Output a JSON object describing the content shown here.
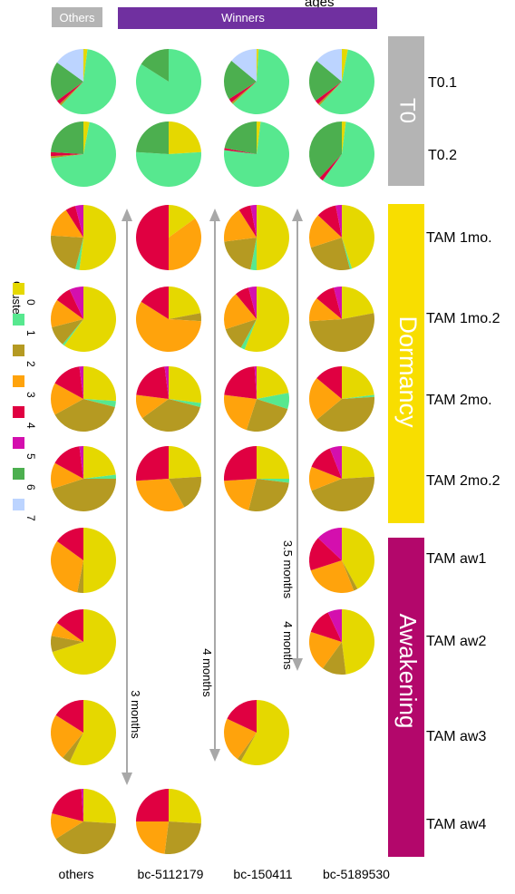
{
  "chart_data": {
    "type": "pie",
    "title_partial": "ages",
    "header": {
      "others": {
        "label": "Others",
        "color": "#b4b4b4"
      },
      "winners": {
        "label": "Winners",
        "color": "#7030a0"
      }
    },
    "legend": {
      "title": "Clusters",
      "placement": "left",
      "items": [
        {
          "label": "0",
          "color": "#e5d800"
        },
        {
          "label": "1",
          "color": "#57e88f"
        },
        {
          "label": "2",
          "color": "#b59a22"
        },
        {
          "label": "3",
          "color": "#ffa30c"
        },
        {
          "label": "4",
          "color": "#e00041"
        },
        {
          "label": "5",
          "color": "#d40fae"
        },
        {
          "label": "6",
          "color": "#4caf4f"
        },
        {
          "label": "7",
          "color": "#bcd4ff"
        }
      ]
    },
    "columns": [
      "others",
      "bc-5112179",
      "bc-150411",
      "bc-5189530"
    ],
    "rows": [
      "T0.1",
      "T0.2",
      "TAM 1mo.",
      "TAM 1mo.2",
      "TAM 2mo.",
      "TAM 2mo.2",
      "TAM aw1",
      "TAM aw2",
      "TAM aw3",
      "TAM aw4"
    ],
    "phases": [
      {
        "label": "T0",
        "color": "#b4b4b4"
      },
      {
        "label": "Dormancy",
        "color": "#f8de00"
      },
      {
        "label": "Awakening",
        "color": "#b3076b"
      }
    ],
    "durations": [
      {
        "label": "3 months"
      },
      {
        "label": "4 months"
      },
      {
        "label": "3.5 months"
      },
      {
        "label": "4 months"
      }
    ],
    "pies": [
      {
        "row": "T0.1",
        "col": "others",
        "values": [
          2,
          60,
          1,
          0,
          2,
          0,
          20,
          15
        ]
      },
      {
        "row": "T0.1",
        "col": "bc-5112179",
        "values": [
          0,
          84,
          0,
          0,
          0,
          0,
          16,
          0
        ]
      },
      {
        "row": "T0.1",
        "col": "bc-150411",
        "values": [
          1,
          62,
          1,
          0,
          2,
          0,
          20,
          14
        ]
      },
      {
        "row": "T0.1",
        "col": "bc-5189530",
        "values": [
          3,
          59,
          1,
          0,
          2,
          0,
          21,
          14
        ]
      },
      {
        "row": "T0.2",
        "col": "others",
        "values": [
          3,
          70,
          1,
          0,
          2,
          0,
          24,
          0
        ]
      },
      {
        "row": "T0.2",
        "col": "bc-5112179",
        "values": [
          24,
          52,
          0,
          0,
          0,
          0,
          24,
          0
        ]
      },
      {
        "row": "T0.2",
        "col": "bc-150411",
        "values": [
          2,
          75,
          0,
          0,
          1,
          0,
          22,
          0
        ]
      },
      {
        "row": "T0.2",
        "col": "bc-5189530",
        "values": [
          2,
          58,
          0,
          0,
          2,
          0,
          38,
          0
        ]
      },
      {
        "row": "TAM 1mo.",
        "col": "others",
        "values": [
          52,
          2,
          22,
          15,
          5,
          4,
          0,
          0
        ]
      },
      {
        "row": "TAM 1mo.",
        "col": "bc-5112179",
        "values": [
          15,
          0,
          0,
          35,
          50,
          0,
          0,
          0
        ]
      },
      {
        "row": "TAM 1mo.",
        "col": "bc-150411",
        "values": [
          50,
          3,
          20,
          18,
          6,
          3,
          0,
          0
        ]
      },
      {
        "row": "TAM 1mo.",
        "col": "bc-5189530",
        "values": [
          45,
          1,
          24,
          17,
          10,
          3,
          0,
          0
        ]
      },
      {
        "row": "TAM 1mo.2",
        "col": "others",
        "values": [
          60,
          1,
          10,
          14,
          8,
          7,
          0,
          0
        ]
      },
      {
        "row": "TAM 1mo.2",
        "col": "bc-5112179",
        "values": [
          22,
          0,
          4,
          58,
          16,
          0,
          0,
          0
        ]
      },
      {
        "row": "TAM 1mo.2",
        "col": "bc-150411",
        "values": [
          56,
          2,
          12,
          19,
          7,
          4,
          0,
          0
        ]
      },
      {
        "row": "TAM 1mo.2",
        "col": "bc-5189530",
        "values": [
          22,
          0,
          52,
          12,
          10,
          4,
          0,
          0
        ]
      },
      {
        "row": "TAM 2mo.",
        "col": "others",
        "values": [
          26,
          3,
          38,
          16,
          15,
          2,
          0,
          0
        ]
      },
      {
        "row": "TAM 2mo.",
        "col": "bc-5112179",
        "values": [
          27,
          2,
          36,
          12,
          21,
          2,
          0,
          0
        ]
      },
      {
        "row": "TAM 2mo.",
        "col": "bc-150411",
        "values": [
          22,
          8,
          25,
          22,
          22,
          1,
          0,
          0
        ]
      },
      {
        "row": "TAM 2mo.",
        "col": "bc-5189530",
        "values": [
          23,
          1,
          40,
          22,
          14,
          0,
          0,
          0
        ]
      },
      {
        "row": "TAM 2mo.2",
        "col": "others",
        "values": [
          23,
          2,
          45,
          13,
          15,
          2,
          0,
          0
        ]
      },
      {
        "row": "TAM 2mo.2",
        "col": "bc-5112179",
        "values": [
          24,
          0,
          18,
          32,
          26,
          0,
          0,
          0
        ]
      },
      {
        "row": "TAM 2mo.2",
        "col": "bc-150411",
        "values": [
          25,
          2,
          27,
          20,
          26,
          0,
          0,
          0
        ]
      },
      {
        "row": "TAM 2mo.2",
        "col": "bc-5189530",
        "values": [
          24,
          0,
          45,
          12,
          13,
          6,
          0,
          0
        ]
      },
      {
        "row": "TAM aw1",
        "col": "others",
        "values": [
          50,
          0,
          3,
          32,
          15,
          0,
          0,
          0
        ]
      },
      {
        "row": "TAM aw1",
        "col": "bc-5189530",
        "values": [
          42,
          0,
          2,
          26,
          17,
          13,
          0,
          0
        ]
      },
      {
        "row": "TAM aw2",
        "col": "others",
        "values": [
          70,
          0,
          8,
          7,
          15,
          0,
          0,
          0
        ]
      },
      {
        "row": "TAM aw2",
        "col": "bc-5189530",
        "values": [
          48,
          0,
          12,
          20,
          13,
          7,
          0,
          0
        ]
      },
      {
        "row": "TAM aw3",
        "col": "others",
        "values": [
          57,
          0,
          4,
          23,
          16,
          0,
          0,
          0
        ]
      },
      {
        "row": "TAM aw3",
        "col": "bc-150411",
        "values": [
          58,
          0,
          2,
          22,
          18,
          0,
          0,
          0
        ]
      },
      {
        "row": "TAM aw4",
        "col": "others",
        "values": [
          26,
          0,
          40,
          13,
          20,
          1,
          0,
          0
        ]
      },
      {
        "row": "TAM aw4",
        "col": "bc-5112179",
        "values": [
          26,
          0,
          26,
          23,
          25,
          0,
          0,
          0
        ]
      }
    ]
  }
}
